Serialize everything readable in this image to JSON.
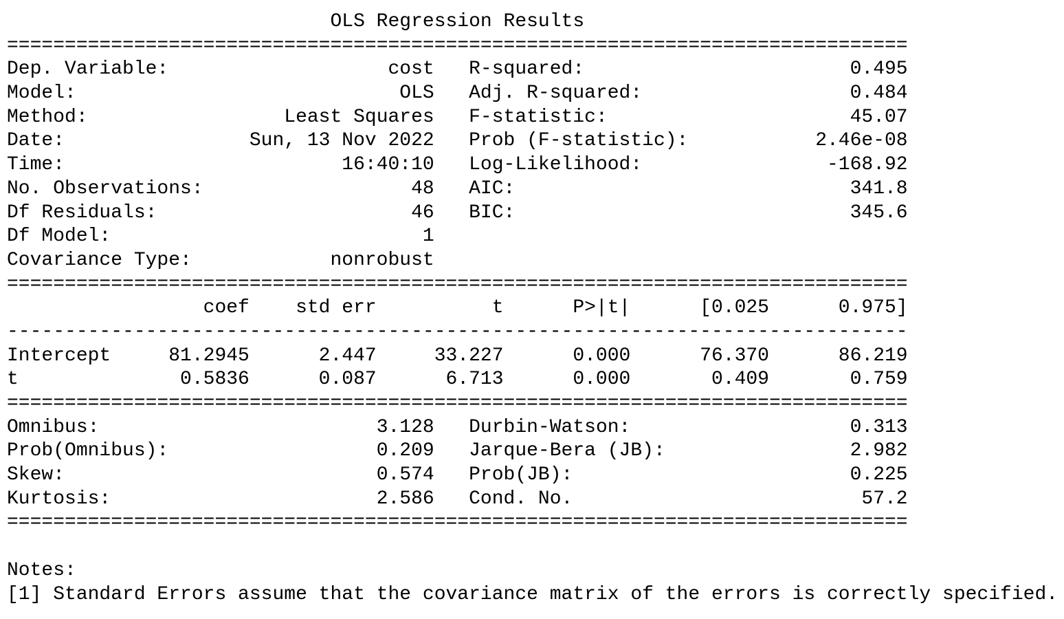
{
  "title": "OLS Regression Results",
  "top_rows": [
    {
      "l_label": "Dep. Variable:",
      "l_value": "cost",
      "r_label": "R-squared:",
      "r_value": "0.495"
    },
    {
      "l_label": "Model:",
      "l_value": "OLS",
      "r_label": "Adj. R-squared:",
      "r_value": "0.484"
    },
    {
      "l_label": "Method:",
      "l_value": "Least Squares",
      "r_label": "F-statistic:",
      "r_value": "45.07"
    },
    {
      "l_label": "Date:",
      "l_value": "Sun, 13 Nov 2022",
      "r_label": "Prob (F-statistic):",
      "r_value": "2.46e-08"
    },
    {
      "l_label": "Time:",
      "l_value": "16:40:10",
      "r_label": "Log-Likelihood:",
      "r_value": "-168.92"
    },
    {
      "l_label": "No. Observations:",
      "l_value": "48",
      "r_label": "AIC:",
      "r_value": "341.8"
    },
    {
      "l_label": "Df Residuals:",
      "l_value": "46",
      "r_label": "BIC:",
      "r_value": "345.6"
    },
    {
      "l_label": "Df Model:",
      "l_value": "1",
      "r_label": "",
      "r_value": ""
    },
    {
      "l_label": "Covariance Type:",
      "l_value": "nonrobust",
      "r_label": "",
      "r_value": ""
    }
  ],
  "coef_table": {
    "headers": [
      "",
      "coef",
      "std err",
      "t",
      "P>|t|",
      "[0.025",
      "0.975]"
    ],
    "rows": [
      [
        "Intercept",
        "81.2945",
        "2.447",
        "33.227",
        "0.000",
        "76.370",
        "86.219"
      ],
      [
        "t",
        "0.5836",
        "0.087",
        "6.713",
        "0.000",
        "0.409",
        "0.759"
      ]
    ]
  },
  "bottom_rows": [
    {
      "l_label": "Omnibus:",
      "l_value": "3.128",
      "r_label": "Durbin-Watson:",
      "r_value": "0.313"
    },
    {
      "l_label": "Prob(Omnibus):",
      "l_value": "0.209",
      "r_label": "Jarque-Bera (JB):",
      "r_value": "2.982"
    },
    {
      "l_label": "Skew:",
      "l_value": "0.574",
      "r_label": "Prob(JB):",
      "r_value": "0.225"
    },
    {
      "l_label": "Kurtosis:",
      "l_value": "2.586",
      "r_label": "Cond. No.",
      "r_value": "57.2"
    }
  ],
  "notes": {
    "heading": "Notes:",
    "items": [
      "[1] Standard Errors assume that the covariance matrix of the errors is correctly specified."
    ]
  },
  "rule_double": "==============================================================================",
  "rule_single": "------------------------------------------------------------------------------"
}
